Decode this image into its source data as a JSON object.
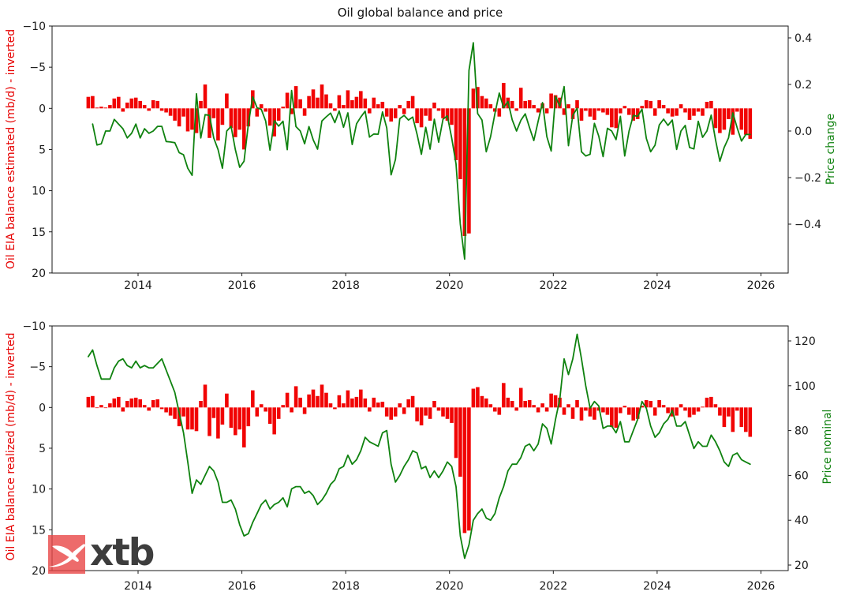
{
  "title": "Oil global balance and price",
  "logo": {
    "text": "xtb"
  },
  "colors": {
    "bar_red": "#f10404",
    "line_green": "#0f820f",
    "balance_label_red": "#e60000",
    "price_label_green": "#0f820f",
    "tick_text": "#1a1a1a",
    "logo_square": "rgba(233,70,70,0.8)",
    "logo_text": "#3d3d3d"
  },
  "chart_data": [
    {
      "type": "bar+line",
      "panel": "top",
      "start_month": "2013-01",
      "freq": "monthly",
      "ylabel_left": "Oil EIA balance estimated (mb/d) - inverted",
      "ylabel_right": "Price change",
      "y_left_ticks": [
        -10,
        -5,
        0,
        5,
        10,
        15,
        20
      ],
      "y_left_inverted": true,
      "ylim_left": [
        -10,
        20
      ],
      "y_right_ticks": [
        0.4,
        0.2,
        0.0,
        -0.2,
        -0.4
      ],
      "ylim_right": [
        -0.6,
        0.45
      ],
      "x_ticks": [
        2014,
        2016,
        2018,
        2020,
        2022,
        2024,
        2026
      ],
      "grid": false,
      "legend": "none",
      "bars": [
        -1.4,
        -1.5,
        -0.1,
        -0.2,
        -0.1,
        -0.4,
        -1.2,
        -1.4,
        0.4,
        -0.7,
        -1.2,
        -1.3,
        -0.9,
        -0.4,
        0.3,
        -1.0,
        -0.9,
        0.3,
        0.5,
        0.9,
        1.5,
        2.2,
        1.0,
        2.8,
        2.6,
        3.0,
        -0.9,
        -2.9,
        3.6,
        1.2,
        3.9,
        2.0,
        -1.8,
        2.4,
        3.5,
        2.6,
        5.0,
        2.2,
        -2.2,
        1.0,
        -0.5,
        0.4,
        2.1,
        3.4,
        1.5,
        -0.2,
        -1.9,
        0.7,
        -2.7,
        -1.1,
        0.9,
        -1.5,
        -2.3,
        -1.3,
        -2.9,
        -1.7,
        -0.6,
        0.3,
        -1.6,
        -0.4,
        -2.2,
        -1.0,
        -1.4,
        -2.1,
        -1.2,
        0.6,
        -1.3,
        -0.5,
        -0.8,
        1.0,
        1.6,
        1.2,
        -0.4,
        0.7,
        -0.9,
        -1.5,
        1.8,
        2.3,
        0.9,
        1.5,
        -0.7,
        0.3,
        1.2,
        1.5,
        2.0,
        6.3,
        8.6,
        15.5,
        15.2,
        -2.4,
        -2.6,
        -1.5,
        -1.2,
        -0.5,
        0.4,
        1.0,
        -3.1,
        -1.3,
        -0.9,
        0.3,
        -2.5,
        -0.9,
        -1.0,
        -0.4,
        0.5,
        -0.6,
        0.6,
        -1.8,
        -1.6,
        -1.3,
        0.8,
        -0.5,
        1.3,
        -1.0,
        1.5,
        0.3,
        1.0,
        1.4,
        0.3,
        0.5,
        0.8,
        2.3,
        2.4,
        0.6,
        -0.3,
        0.8,
        1.5,
        1.3,
        -0.3,
        -1.0,
        -0.9,
        0.9,
        -1.0,
        -0.4,
        0.6,
        1.0,
        0.9,
        -0.5,
        0.5,
        1.4,
        0.9,
        0.4,
        0.9,
        -0.8,
        -0.9,
        2.4,
        3.0,
        2.6,
        1.3,
        3.2,
        0.4,
        2.6,
        3.2,
        3.7
      ],
      "line": [
        null,
        0.03,
        -0.06,
        -0.055,
        0,
        0,
        0.05,
        0.03,
        0.01,
        -0.03,
        -0.01,
        0.03,
        -0.03,
        0.01,
        -0.01,
        0,
        0.02,
        0.02,
        -0.045,
        -0.047,
        -0.05,
        -0.093,
        -0.102,
        -0.16,
        -0.19,
        0.16,
        -0.03,
        0.07,
        0.067,
        -0.03,
        -0.08,
        -0.16,
        0,
        0.02,
        -0.08,
        -0.156,
        -0.13,
        0.03,
        0.147,
        0.1,
        0.093,
        0.043,
        -0.082,
        0.044,
        0.021,
        0.042,
        -0.08,
        0.174,
        0.019,
        0,
        -0.055,
        0.019,
        -0.038,
        -0.078,
        0.043,
        0.061,
        0.077,
        0.036,
        0.086,
        0.016,
        0.078,
        -0.058,
        0.031,
        0.06,
        0.085,
        -0.026,
        -0.013,
        -0.014,
        0.082,
        0.013,
        -0.188,
        -0.123,
        0.053,
        0.067,
        0.047,
        0.06,
        -0.014,
        -0.1,
        0.016,
        -0.078,
        0.051,
        -0.048,
        0.051,
        0.065,
        -0.03,
        -0.141,
        -0.4,
        -0.55,
        0.26,
        0.379,
        0.075,
        0.047,
        -0.089,
        -0.024,
        0.075,
        0.163,
        0.1,
        0.127,
        0.048,
        0,
        0.046,
        0.074,
        0.014,
        -0.041,
        0.042,
        0.122,
        -0.024,
        -0.086,
        0.149,
        0.106,
        0.191,
        -0.063,
        0.067,
        0.098,
        -0.089,
        -0.107,
        -0.1,
        0.033,
        -0.022,
        -0.11,
        0.012,
        0,
        -0.037,
        0.063,
        -0.107,
        0,
        0.067,
        0.063,
        0.094,
        -0.032,
        -0.089,
        -0.061,
        0.026,
        0.051,
        0.024,
        0.047,
        -0.079,
        0,
        0.024,
        -0.071,
        -0.077,
        0.042,
        -0.027,
        0,
        0.068,
        -0.038,
        -0.13,
        -0.07,
        -0.03,
        0.078,
        0.014,
        -0.043,
        -0.015,
        -0.015
      ]
    },
    {
      "type": "bar+line",
      "panel": "bottom",
      "start_month": "2013-01",
      "freq": "monthly",
      "ylabel_left": "Oil EIA balance realized (mb/d) - inverted",
      "ylabel_right": "Price nominal",
      "y_left_ticks": [
        -10,
        -5,
        0,
        5,
        10,
        15,
        20
      ],
      "y_left_inverted": true,
      "ylim_left": [
        -10,
        20
      ],
      "y_right_ticks": [
        120,
        100,
        80,
        60,
        40,
        20
      ],
      "ylim_right": [
        18,
        128
      ],
      "x_ticks": [
        2014,
        2016,
        2018,
        2020,
        2022,
        2024,
        2026
      ],
      "grid": false,
      "legend": "none",
      "bars": [
        -1.3,
        -1.4,
        0.0,
        -0.3,
        0.0,
        -0.5,
        -1.1,
        -1.3,
        0.5,
        -0.8,
        -1.1,
        -1.2,
        -1.0,
        -0.3,
        0.4,
        -0.9,
        -1.0,
        0.2,
        0.6,
        1.0,
        1.4,
        2.3,
        1.1,
        2.7,
        2.7,
        2.9,
        -0.8,
        -2.8,
        3.5,
        1.3,
        3.8,
        2.1,
        -1.7,
        2.5,
        3.4,
        2.7,
        4.9,
        2.3,
        -2.1,
        1.1,
        -0.4,
        0.5,
        2.0,
        3.3,
        1.4,
        -0.3,
        -1.8,
        0.6,
        -2.6,
        -1.2,
        0.8,
        -1.6,
        -2.2,
        -1.4,
        -2.8,
        -1.8,
        -0.5,
        0.2,
        -1.5,
        -0.5,
        -2.1,
        -1.1,
        -1.3,
        -2.2,
        -1.1,
        0.5,
        -1.2,
        -0.6,
        -0.7,
        1.1,
        1.5,
        1.1,
        -0.5,
        0.8,
        -1.0,
        -1.4,
        1.7,
        2.2,
        1.0,
        1.4,
        -0.8,
        0.4,
        1.1,
        1.4,
        1.9,
        6.2,
        8.5,
        15.4,
        15.1,
        -2.3,
        -2.5,
        -1.4,
        -1.1,
        -0.4,
        0.5,
        0.9,
        -3.0,
        -1.2,
        -0.8,
        0.4,
        -2.4,
        -0.8,
        -0.9,
        -0.3,
        0.6,
        -0.5,
        0.5,
        -1.7,
        -1.5,
        -1.2,
        0.9,
        -0.4,
        1.4,
        -0.9,
        1.6,
        0.4,
        1.1,
        1.5,
        0.4,
        0.6,
        0.9,
        2.4,
        2.5,
        0.7,
        -0.2,
        0.9,
        1.6,
        1.4,
        -0.2,
        -0.9,
        -0.8,
        1.0,
        -0.9,
        -0.3,
        0.7,
        1.1,
        1.0,
        -0.4,
        0.4,
        1.2,
        0.9,
        0.5,
        -0.1,
        -1.2,
        -1.3,
        -0.4,
        1.0,
        2.4,
        1.1,
        3.0,
        0.4,
        2.4,
        3.0,
        3.6
      ],
      "line": [
        113,
        116,
        109,
        103,
        103,
        103,
        108,
        111,
        112,
        109,
        108,
        111,
        108,
        109,
        108,
        108,
        110,
        112,
        107,
        102,
        97,
        88,
        79,
        66,
        52,
        58,
        56,
        60,
        64,
        62,
        57,
        48,
        48,
        49,
        45,
        38,
        33,
        34,
        39,
        43,
        47,
        49,
        45,
        47,
        48,
        50,
        46,
        54,
        55,
        55,
        52,
        53,
        51,
        47,
        49,
        52,
        56,
        58,
        63,
        64,
        69,
        65,
        67,
        71,
        77,
        75,
        74,
        73,
        79,
        80,
        65,
        57,
        60,
        64,
        67,
        71,
        70,
        63,
        64,
        59,
        62,
        59,
        62,
        66,
        64,
        55,
        33,
        23,
        29,
        40,
        43,
        45,
        41,
        40,
        43,
        50,
        55,
        62,
        65,
        65,
        68,
        73,
        74,
        71,
        74,
        83,
        81,
        74,
        85,
        94,
        112,
        105,
        112,
        123,
        112,
        100,
        90,
        93,
        91,
        81,
        82,
        82,
        79,
        84,
        75,
        75,
        80,
        85,
        93,
        90,
        82,
        77,
        79,
        83,
        85,
        89,
        82,
        82,
        84,
        78,
        72,
        75,
        73,
        73,
        78,
        75,
        71,
        66,
        64,
        69,
        70,
        67,
        66,
        65
      ]
    }
  ]
}
